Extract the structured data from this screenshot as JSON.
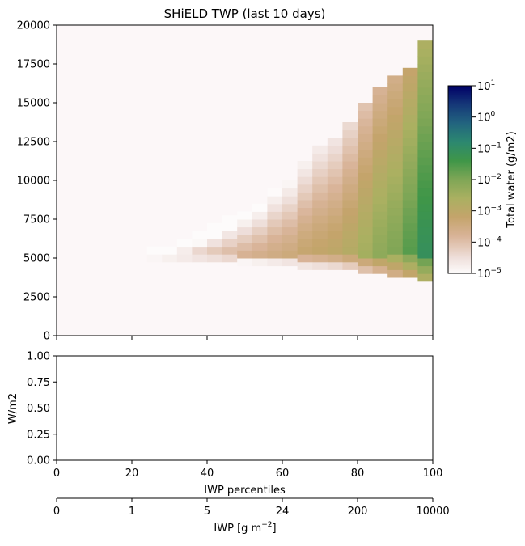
{
  "chart_data": [
    {
      "type": "heatmap",
      "title": "SHiELD TWP (last 10 days)",
      "xlim": [
        0,
        100
      ],
      "ylim": [
        0,
        20000
      ],
      "yticks": [
        "0",
        "2500",
        "5000",
        "7500",
        "10000",
        "12500",
        "15000",
        "17500",
        "20000"
      ],
      "x_bin_width_percent": 4,
      "y_bin_height": 500,
      "colormap": "gist_earth_r",
      "colorbar": {
        "label": "Total water (g/m2)",
        "scale": "log",
        "range": [
          1e-05,
          10
        ],
        "ticks": [
          {
            "base": "10",
            "exp": "1"
          },
          {
            "base": "10",
            "exp": "0"
          },
          {
            "base": "10",
            "exp": "−1"
          },
          {
            "base": "10",
            "exp": "−2"
          },
          {
            "base": "10",
            "exp": "−3"
          },
          {
            "base": "10",
            "exp": "−4"
          },
          {
            "base": "10",
            "exp": "−5"
          }
        ]
      },
      "columns": [
        {
          "x_center": 26,
          "y_min": 4750,
          "y_max": 5500,
          "peak_log10": -4.3
        },
        {
          "x_center": 30,
          "y_min": 4750,
          "y_max": 5750,
          "peak_log10": -4.2
        },
        {
          "x_center": 34,
          "y_min": 4750,
          "y_max": 6000,
          "peak_log10": -4.1
        },
        {
          "x_center": 38,
          "y_min": 4750,
          "y_max": 6500,
          "peak_log10": -4.0
        },
        {
          "x_center": 42,
          "y_min": 4750,
          "y_max": 7000,
          "peak_log10": -3.9
        },
        {
          "x_center": 46,
          "y_min": 4750,
          "y_max": 7500,
          "peak_log10": -3.8
        },
        {
          "x_center": 50,
          "y_min": 4500,
          "y_max": 8000,
          "peak_log10": -3.7
        },
        {
          "x_center": 54,
          "y_min": 4500,
          "y_max": 8500,
          "peak_log10": -3.6
        },
        {
          "x_center": 58,
          "y_min": 4500,
          "y_max": 9500,
          "peak_log10": -3.5
        },
        {
          "x_center": 62,
          "y_min": 4500,
          "y_max": 10000,
          "peak_log10": -3.4
        },
        {
          "x_center": 66,
          "y_min": 4250,
          "y_max": 11000,
          "peak_log10": -3.2
        },
        {
          "x_center": 70,
          "y_min": 4250,
          "y_max": 12000,
          "peak_log10": -3.1
        },
        {
          "x_center": 74,
          "y_min": 4250,
          "y_max": 12500,
          "peak_log10": -3.0
        },
        {
          "x_center": 78,
          "y_min": 4250,
          "y_max": 13500,
          "peak_log10": -2.8
        },
        {
          "x_center": 82,
          "y_min": 4000,
          "y_max": 15000,
          "peak_log10": -2.5
        },
        {
          "x_center": 86,
          "y_min": 4000,
          "y_max": 16000,
          "peak_log10": -2.2
        },
        {
          "x_center": 90,
          "y_min": 3750,
          "y_max": 16500,
          "peak_log10": -2.0
        },
        {
          "x_center": 94,
          "y_min": 3750,
          "y_max": 17000,
          "peak_log10": -1.6
        },
        {
          "x_center": 98,
          "y_min": 3500,
          "y_max": 19000,
          "peak_log10": -1.1
        }
      ]
    },
    {
      "type": "line",
      "ylabel": "W/m2",
      "xlim": [
        0,
        100
      ],
      "ylim": [
        0,
        1
      ],
      "yticks": [
        "0.00",
        "0.25",
        "0.50",
        "0.75",
        "1.00"
      ],
      "series": [],
      "x_axes": [
        {
          "label": "IWP percentiles",
          "ticks": [
            "0",
            "20",
            "40",
            "60",
            "80",
            "100"
          ],
          "tick_values": [
            0,
            20,
            40,
            60,
            80,
            100
          ]
        },
        {
          "label": "IWP [g m",
          "label_exponent": "−2",
          "label_suffix": "]",
          "ticks": [
            "0",
            "1",
            "5",
            "24",
            "200",
            "10000"
          ],
          "tick_values": [
            0,
            20,
            40,
            60,
            80,
            100
          ]
        }
      ]
    }
  ]
}
